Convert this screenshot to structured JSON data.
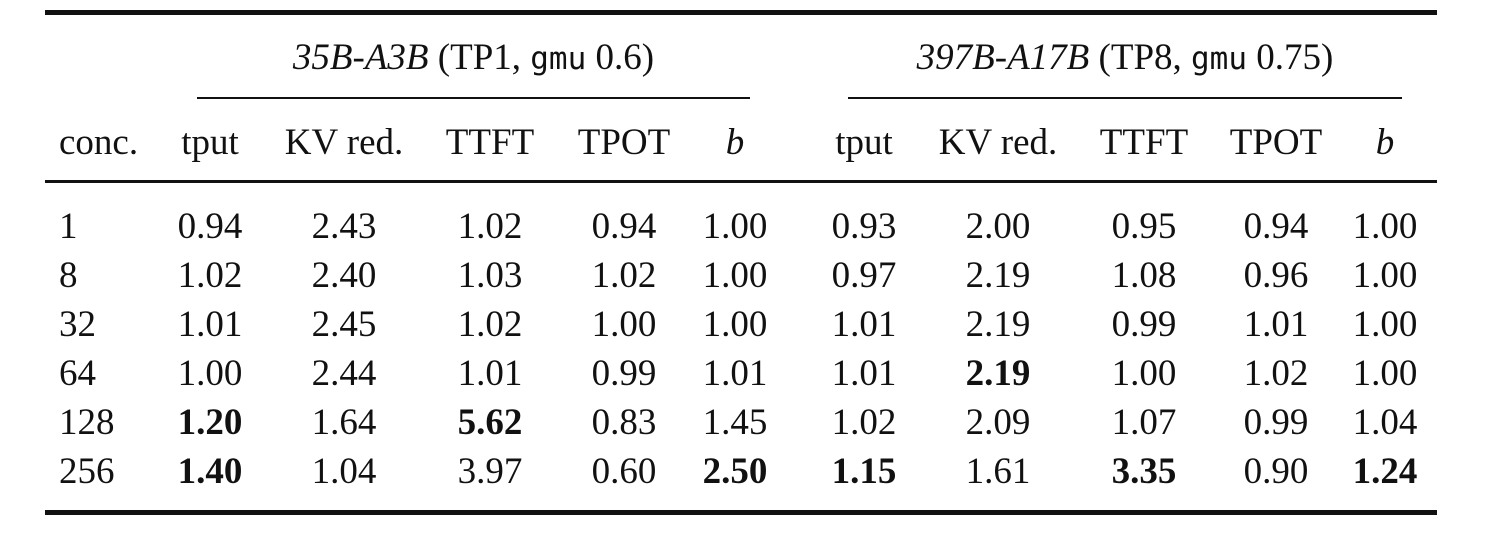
{
  "groups": [
    {
      "model": "35B-A3B",
      "open": " (TP1, ",
      "mono": "gmu",
      "value": " 0.6)"
    },
    {
      "model": "397B-A17B",
      "open": " (TP8, ",
      "mono": "gmu",
      "value": " 0.75)"
    }
  ],
  "columns": [
    "conc.",
    "tput",
    "KV red.",
    "TTFT",
    "TPOT",
    "b",
    "tput",
    "KV red.",
    "TTFT",
    "TPOT",
    "b"
  ],
  "rows": [
    {
      "cells": [
        "1",
        "0.94",
        "2.43",
        "1.02",
        "0.94",
        "1.00",
        "0.93",
        "2.00",
        "0.95",
        "0.94",
        "1.00"
      ],
      "bold": []
    },
    {
      "cells": [
        "8",
        "1.02",
        "2.40",
        "1.03",
        "1.02",
        "1.00",
        "0.97",
        "2.19",
        "1.08",
        "0.96",
        "1.00"
      ],
      "bold": []
    },
    {
      "cells": [
        "32",
        "1.01",
        "2.45",
        "1.02",
        "1.00",
        "1.00",
        "1.01",
        "2.19",
        "0.99",
        "1.01",
        "1.00"
      ],
      "bold": []
    },
    {
      "cells": [
        "64",
        "1.00",
        "2.44",
        "1.01",
        "0.99",
        "1.01",
        "1.01",
        "2.19",
        "1.00",
        "1.02",
        "1.00"
      ],
      "bold": [
        7
      ]
    },
    {
      "cells": [
        "128",
        "1.20",
        "1.64",
        "5.62",
        "0.83",
        "1.45",
        "1.02",
        "2.09",
        "1.07",
        "0.99",
        "1.04"
      ],
      "bold": [
        1,
        3
      ]
    },
    {
      "cells": [
        "256",
        "1.40",
        "1.04",
        "3.97",
        "0.60",
        "2.50",
        "1.15",
        "1.61",
        "3.35",
        "0.90",
        "1.24"
      ],
      "bold": [
        1,
        5,
        6,
        8,
        10
      ]
    }
  ]
}
